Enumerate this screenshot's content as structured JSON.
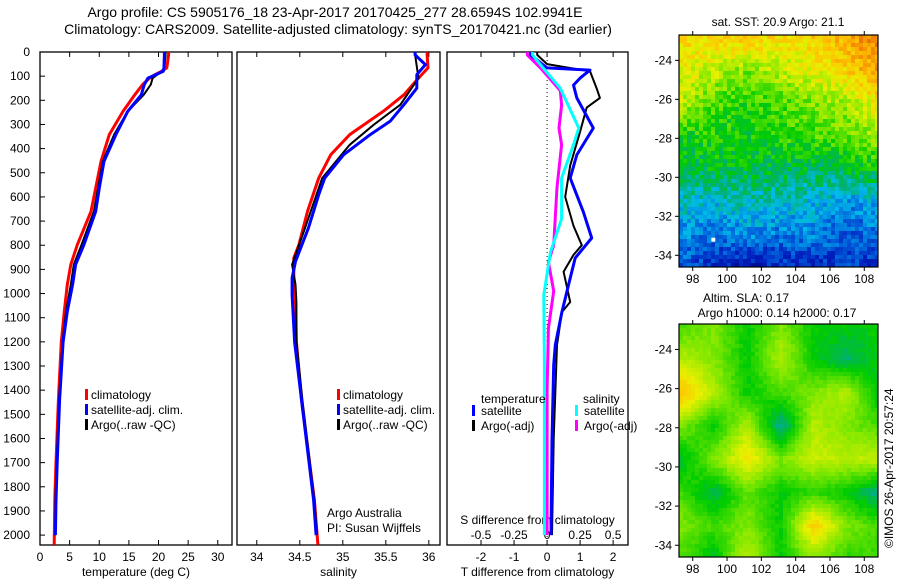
{
  "header": {
    "title_line1": "Argo profile: CS 5905176_18 23-Apr-2017 20170425_277 28.6594S 102.9941E",
    "title_line2": "Climatology: CARS2009. Satellite-adjusted climatology: synTS_20170421.nc (3d earlier)"
  },
  "credits": {
    "group": "Argo Australia",
    "pi": "PI: Susan Wijffels",
    "copyright": "©IMOS 26-Apr-2017 20:57:24"
  },
  "colors": {
    "climatology": "#ff0000",
    "satellite": "#0000ff",
    "argo": "#000000",
    "salinity_satellite": "#00ffff",
    "salinity_argo": "#ff00ff"
  },
  "chart_data": [
    {
      "type": "line",
      "title": "",
      "xlabel": "temperature (deg C)",
      "ylabel": "",
      "xlim": [
        0,
        32.4
      ],
      "ylim": [
        2041,
        0
      ],
      "x_ticks": [
        "0",
        "5",
        "10",
        "15",
        "20",
        "25",
        "30"
      ],
      "x_tick_values": [
        0,
        5,
        10,
        15,
        20,
        25,
        30
      ],
      "y_ticks": [
        "0",
        "100",
        "200",
        "300",
        "400",
        "500",
        "600",
        "700",
        "800",
        "900",
        "1000",
        "1100",
        "1200",
        "1300",
        "1400",
        "1500",
        "1600",
        "1700",
        "1800",
        "1900",
        "2000"
      ],
      "y_tick_values": [
        0,
        100,
        200,
        300,
        400,
        500,
        600,
        700,
        800,
        900,
        1000,
        1100,
        1200,
        1300,
        1400,
        1500,
        1600,
        1700,
        1800,
        1900,
        2000
      ],
      "legend": [
        "climatology",
        "satellite-adj. clim.",
        "Argo(..raw -QC)"
      ],
      "series": [
        {
          "name": "climatology",
          "color": "#ff0000",
          "depth": [
            0,
            12,
            66,
            80,
            94,
            108,
            135,
            177,
            246,
            342,
            453,
            563,
            660,
            798,
            880,
            963,
            1074,
            1200,
            1440,
            1700,
            1855,
            2040
          ],
          "values": [
            21.7,
            21.7,
            21.4,
            20.5,
            19.4,
            18.5,
            17.3,
            16.0,
            14.0,
            11.7,
            10.3,
            9.4,
            8.6,
            6.3,
            5.2,
            4.6,
            4.1,
            3.6,
            3.1,
            2.7,
            2.5,
            2.4
          ]
        },
        {
          "name": "Argo(..raw -QC)",
          "color": "#000000",
          "depth": [
            0,
            12,
            66,
            80,
            94,
            108,
            135,
            177,
            246,
            342,
            453,
            563,
            660,
            798,
            880,
            963,
            1074,
            1200,
            1440,
            1700,
            1855,
            2000
          ],
          "values": [
            21.2,
            21.2,
            21.0,
            20.6,
            19.8,
            19.0,
            18.7,
            17.5,
            14.8,
            12.5,
            10.6,
            9.8,
            9.1,
            7.0,
            5.7,
            5.2,
            4.4,
            3.8,
            3.2,
            2.8,
            2.6,
            2.6
          ]
        },
        {
          "name": "satellite-adj. clim.",
          "color": "#0000ff",
          "depth": [
            0,
            12,
            66,
            80,
            94,
            108,
            135,
            177,
            246,
            342,
            453,
            563,
            660,
            798,
            880,
            963,
            1074,
            1200,
            1440,
            1700,
            1855,
            2000
          ],
          "values": [
            21.0,
            21.0,
            20.9,
            20.8,
            19.5,
            18.2,
            17.6,
            17.1,
            14.8,
            12.8,
            10.8,
            10.0,
            9.4,
            7.4,
            6.0,
            5.5,
            4.6,
            3.9,
            3.3,
            2.9,
            2.7,
            2.6
          ]
        }
      ]
    },
    {
      "type": "line",
      "xlabel": "salinity",
      "xlim": [
        33.77,
        36.13
      ],
      "ylim": [
        2041,
        0
      ],
      "x_ticks": [
        "34",
        "34.5",
        "35",
        "35.5",
        "36"
      ],
      "x_tick_values": [
        34,
        34.5,
        35,
        35.5,
        36
      ],
      "legend": [
        "climatology",
        "satellite-adj. clim.",
        "Argo(..raw -QC)"
      ],
      "series": [
        {
          "name": "climatology",
          "color": "#ff0000",
          "depth": [
            0,
            12,
            66,
            108,
            177,
            246,
            342,
            425,
            522,
            660,
            798,
            853,
            936,
            1035,
            1200,
            1440,
            1855,
            2040
          ],
          "values": [
            35.98,
            35.98,
            35.99,
            35.88,
            35.71,
            35.47,
            35.08,
            34.86,
            34.72,
            34.59,
            34.49,
            34.43,
            34.43,
            34.45,
            34.46,
            34.52,
            34.67,
            34.71
          ]
        },
        {
          "name": "Argo(..raw -QC)",
          "color": "#000000",
          "depth": [
            0,
            12,
            108,
            218,
            301,
            384,
            522,
            729,
            880,
            963,
            1035,
            1200,
            1440,
            1855,
            2000
          ],
          "values": [
            35.84,
            35.84,
            35.88,
            35.67,
            35.36,
            35.08,
            34.76,
            34.56,
            34.41,
            34.45,
            34.46,
            34.46,
            34.53,
            34.67,
            34.7
          ]
        },
        {
          "name": "satellite-adj. clim.",
          "color": "#0000ff",
          "depth": [
            0,
            12,
            52,
            94,
            150,
            218,
            287,
            342,
            425,
            522,
            591,
            729,
            867,
            936,
            1005,
            1200,
            1440,
            1855,
            2000
          ],
          "values": [
            35.84,
            35.84,
            35.96,
            35.86,
            35.86,
            35.71,
            35.55,
            35.32,
            35.01,
            34.79,
            34.72,
            34.6,
            34.45,
            34.41,
            34.41,
            34.44,
            34.52,
            34.66,
            34.69
          ]
        }
      ]
    },
    {
      "type": "line",
      "xlabel": "T difference from climatology",
      "x2label": "S difference from climatology",
      "xlim": [
        -3.03,
        2.45
      ],
      "ylim": [
        2041,
        0
      ],
      "x_ticks": [
        "-2",
        "-1",
        "0",
        "1",
        "2"
      ],
      "x_tick_values": [
        -2,
        -1,
        0,
        1,
        2
      ],
      "x2_ticks": [
        "-0.5",
        "-0.25",
        "0",
        "0.25",
        "0.5"
      ],
      "x2_tick_values": [
        -0.5,
        -0.25,
        0,
        0.25,
        0.5
      ],
      "legend_headers": [
        "temperature",
        "salinity"
      ],
      "legend": [
        "satellite",
        "Argo(-adj)",
        "satellite",
        "Argo(-adj)"
      ],
      "series": [
        {
          "name": "salinity Argo(-adj)",
          "axis": "S",
          "color": "#ff00ff",
          "depth": [
            0,
            12,
            66,
            160,
            220,
            315,
            384,
            560,
            800,
            870,
            990,
            1145,
            1400,
            2000
          ],
          "values": [
            -0.15,
            -0.15,
            -0.05,
            0.1,
            0.11,
            0.09,
            0.11,
            0.075,
            0.05,
            0.01,
            0.05,
            0.01,
            0.0,
            0.0
          ]
        },
        {
          "name": "temperature Argo(-adj)",
          "axis": "T",
          "color": "#000000",
          "depth": [
            0,
            12,
            50,
            80,
            150,
            190,
            230,
            330,
            470,
            600,
            720,
            800,
            840,
            910,
            1035,
            1077,
            1213,
            1600,
            2000
          ],
          "values": [
            -0.3,
            -0.3,
            0,
            1.3,
            1.5,
            1.6,
            1.2,
            1.0,
            0.7,
            0.55,
            0.8,
            1.05,
            0.8,
            0.5,
            0.7,
            0.45,
            0.3,
            0.2,
            0.15
          ]
        },
        {
          "name": "temperature satellite",
          "axis": "T",
          "color": "#0000ff",
          "depth": [
            0,
            12,
            66,
            75,
            108,
            137,
            190,
            315,
            426,
            522,
            663,
            770,
            853,
            936,
            1077,
            1213,
            1296,
            1600,
            2000
          ],
          "values": [
            -0.5,
            -0.5,
            0,
            1.3,
            1.0,
            0.8,
            0.9,
            1.4,
            0.9,
            0.7,
            1.1,
            1.35,
            0.85,
            0.7,
            0.45,
            0.25,
            0.2,
            0.15,
            0.12
          ]
        },
        {
          "name": "salinity satellite",
          "axis": "S",
          "color": "#00ffff",
          "depth": [
            0,
            12,
            66,
            150,
            315,
            384,
            522,
            690,
            830,
            1007,
            1296,
            2000
          ],
          "values": [
            -0.11,
            -0.11,
            -0.03,
            0.1,
            0.24,
            0.2,
            0.11,
            0.11,
            0.025,
            -0.025,
            -0.02,
            -0.02
          ]
        }
      ]
    },
    {
      "type": "heatmap",
      "title": "sat. SST: 20.9 Argo: 21.1",
      "lon_range": [
        97.2,
        108.8
      ],
      "lat_range": [
        -34.6,
        -22.7
      ],
      "x_ticks": [
        "98",
        "100",
        "102",
        "104",
        "106",
        "108"
      ],
      "x_tick_values": [
        98,
        100,
        102,
        104,
        106,
        108
      ],
      "y_ticks": [
        "-24",
        "-26",
        "-28",
        "-30",
        "-32",
        "-34"
      ],
      "y_tick_values": [
        -24,
        -26,
        -28,
        -30,
        -32,
        -34
      ],
      "grid_relative": [
        [
          0.72,
          0.7,
          0.75,
          0.68,
          0.72,
          0.78,
          0.85
        ],
        [
          0.65,
          0.62,
          0.55,
          0.62,
          0.65,
          0.72,
          0.8
        ],
        [
          0.6,
          0.5,
          0.48,
          0.5,
          0.55,
          0.58,
          0.68
        ],
        [
          0.45,
          0.48,
          0.45,
          0.48,
          0.5,
          0.52,
          0.58
        ],
        [
          0.4,
          0.42,
          0.42,
          0.42,
          0.4,
          0.42,
          0.45
        ],
        [
          0.32,
          0.3,
          0.33,
          0.32,
          0.3,
          0.25,
          0.3
        ],
        [
          0.25,
          0.22,
          0.25,
          0.22,
          0.25,
          0.18,
          0.22
        ],
        [
          0.18,
          0.12,
          0.08,
          0.12,
          0.1,
          0.15,
          0.12
        ]
      ]
    },
    {
      "type": "heatmap",
      "title": "Altim. SLA: 0.17",
      "subtitle": "Argo h1000: 0.14 h2000: 0.17",
      "lon_range": [
        97.2,
        108.8
      ],
      "lat_range": [
        -34.6,
        -22.7
      ],
      "x_ticks": [
        "98",
        "100",
        "102",
        "104",
        "106",
        "108"
      ],
      "x_tick_values": [
        98,
        100,
        102,
        104,
        106,
        108
      ],
      "y_ticks": [
        "-24",
        "-26",
        "-28",
        "-30",
        "-32",
        "-34"
      ],
      "y_tick_values": [
        -24,
        -26,
        -28,
        -30,
        -32,
        -34
      ],
      "grid_relative": [
        [
          0.5,
          0.55,
          0.45,
          0.55,
          0.45,
          0.45,
          0.45
        ],
        [
          0.6,
          0.55,
          0.45,
          0.6,
          0.45,
          0.38,
          0.45
        ],
        [
          0.75,
          0.6,
          0.45,
          0.5,
          0.55,
          0.6,
          0.42
        ],
        [
          0.55,
          0.45,
          0.6,
          0.35,
          0.6,
          0.55,
          0.5
        ],
        [
          0.42,
          0.55,
          0.68,
          0.55,
          0.62,
          0.6,
          0.62
        ],
        [
          0.5,
          0.4,
          0.52,
          0.45,
          0.48,
          0.45,
          0.35
        ],
        [
          0.55,
          0.5,
          0.55,
          0.45,
          0.72,
          0.55,
          0.5
        ],
        [
          0.5,
          0.42,
          0.62,
          0.45,
          0.55,
          0.48,
          0.5
        ]
      ]
    }
  ]
}
